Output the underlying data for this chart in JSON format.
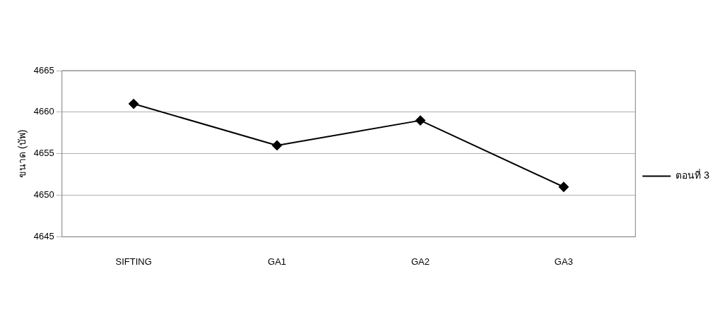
{
  "chart_data": {
    "type": "line",
    "ylabel": "ขนาด (บัพ)",
    "categories": [
      "SIFTING",
      "GA1",
      "GA2",
      "GA3"
    ],
    "series": [
      {
        "name": "ตอนที่ 3",
        "color": "#000000",
        "values": [
          4661,
          4656,
          4659,
          4651
        ]
      }
    ],
    "ylim": [
      4645,
      4665
    ],
    "yticks": [
      4645,
      4650,
      4655,
      4660,
      4665
    ],
    "grid": "y",
    "legend": "right",
    "marker": "diamond",
    "line_style": "solid"
  }
}
